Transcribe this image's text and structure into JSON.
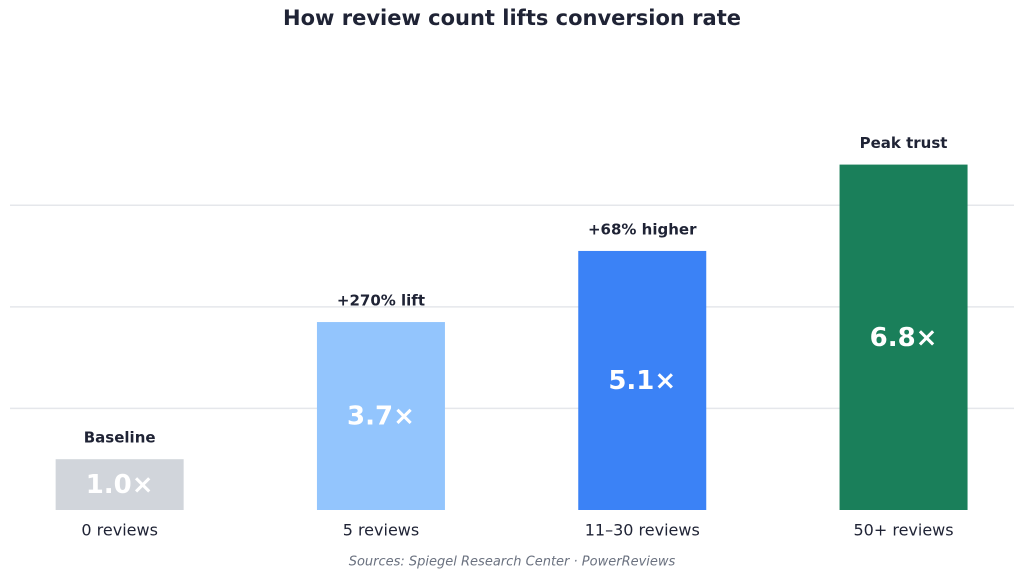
{
  "chart_data": {
    "type": "bar",
    "title": "How review count lifts conversion rate",
    "categories": [
      "0 reviews",
      "5 reviews",
      "11–30 reviews",
      "50+ reviews"
    ],
    "values": [
      1.0,
      3.7,
      5.1,
      6.8
    ],
    "value_labels": [
      "1.0×",
      "3.7×",
      "5.1×",
      "6.8×"
    ],
    "annotations": [
      "Baseline",
      "+270% lift",
      "+68% higher",
      "Peak trust"
    ],
    "colors": [
      "#d1d5db",
      "#93c5fd",
      "#3b82f6",
      "#1a7f5a"
    ],
    "ylim": [
      0,
      8.8
    ],
    "gridlines": [
      2,
      4,
      6
    ],
    "grid": true,
    "source": "Sources: Spiegel Research Center · PowerReviews"
  }
}
